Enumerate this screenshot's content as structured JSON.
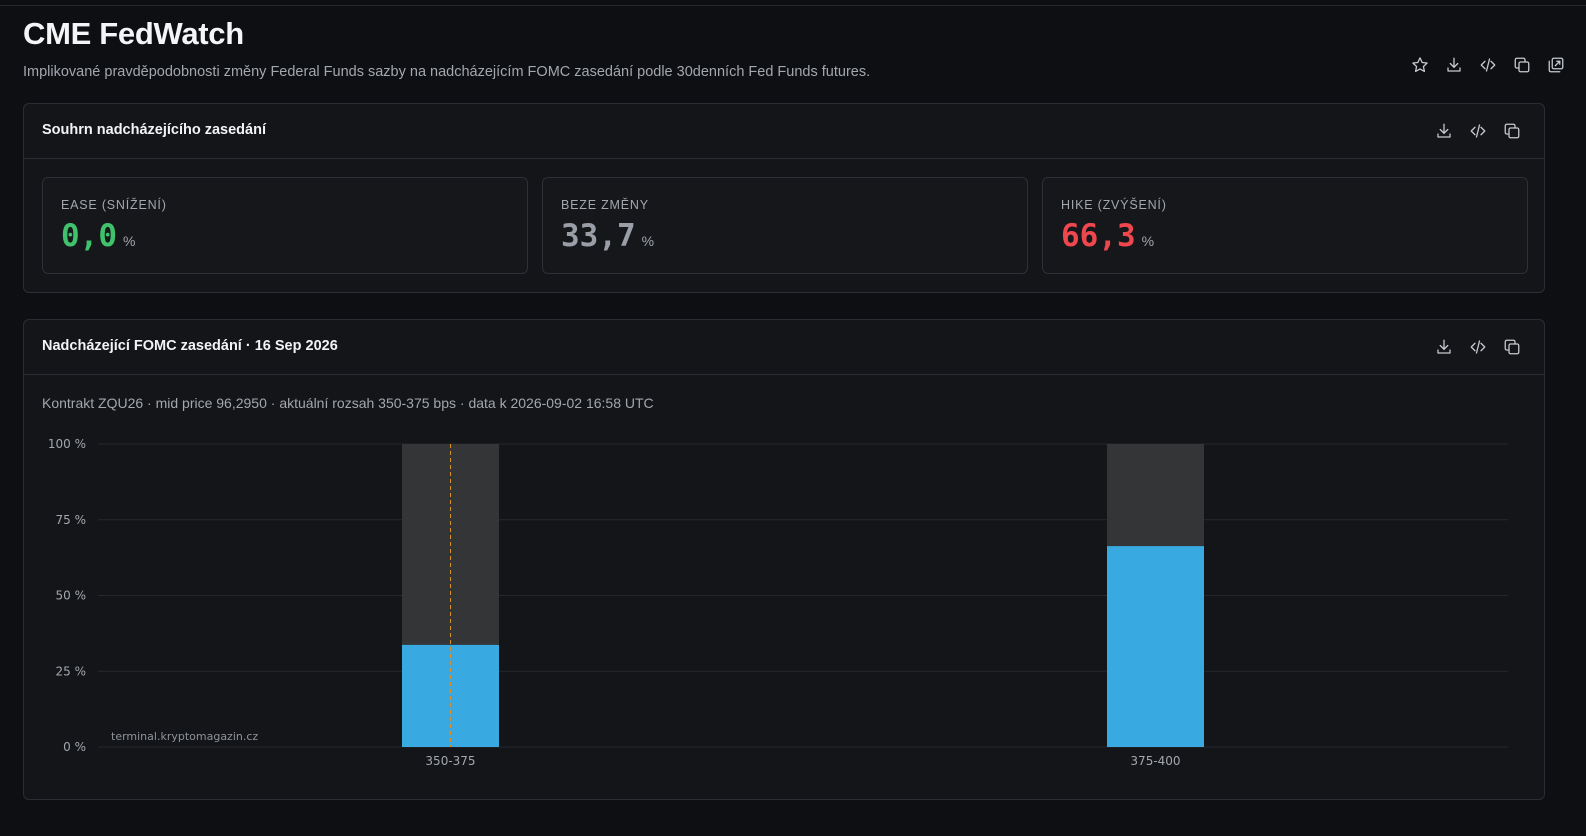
{
  "header": {
    "title": "CME FedWatch",
    "subtitle": "Implikované pravděpodobnosti změny Federal Funds sazby na nadcházejícím FOMC zasedání podle 30denních Fed Funds futures.",
    "actions": [
      "star-icon",
      "download-icon",
      "code-icon",
      "copy-icon",
      "external-copy-icon"
    ]
  },
  "summary": {
    "title": "Souhrn nadcházejícího zasedání",
    "actions": [
      "download-icon",
      "code-icon",
      "copy-icon"
    ],
    "cards": [
      {
        "label": "EASE (SNÍŽENÍ)",
        "value": "0,0",
        "unit": "%",
        "color": "#3fc26b"
      },
      {
        "label": "BEZE ZMĚNY",
        "value": "33,7",
        "unit": "%",
        "color": "#9a9ea6"
      },
      {
        "label": "HIKE (ZVÝŠENÍ)",
        "value": "66,3",
        "unit": "%",
        "color": "#f0474f"
      }
    ]
  },
  "fomc": {
    "title": "Nadcházející FOMC zasedání · 16 Sep 2026",
    "actions": [
      "download-icon",
      "code-icon",
      "copy-icon"
    ],
    "meta": "Kontrakt ZQU26 · mid price 96,2950 · aktuální rozsah 350-375 bps · data k 2026-09-02 16:58 UTC",
    "watermark": "terminal.kryptomagazin.cz"
  },
  "chart_data": {
    "type": "bar",
    "categories": [
      "350-375",
      "375-400"
    ],
    "values": [
      33.7,
      66.3
    ],
    "ylim": [
      0,
      100
    ],
    "yticks": [
      0,
      25,
      50,
      75,
      100
    ],
    "ytick_labels": [
      "0 %",
      "25 %",
      "50 %",
      "75 %",
      "100 %"
    ],
    "current_range": "350-375",
    "grid": true,
    "colors": {
      "bar": "#38a9e1",
      "track": "#333537",
      "current_marker": "#d9912b"
    }
  }
}
